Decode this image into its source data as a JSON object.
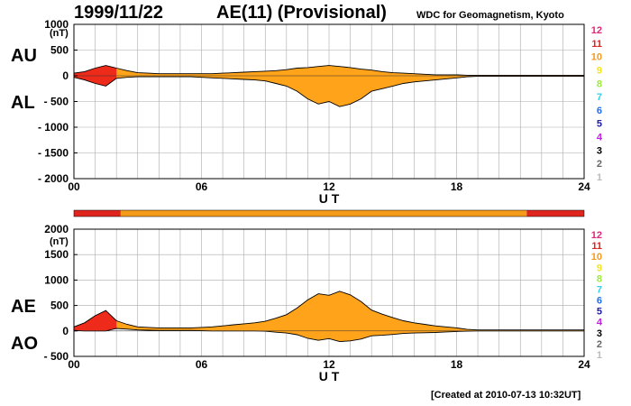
{
  "header": {
    "date": "1999/11/22",
    "title": "AE(11) (Provisional)",
    "source": "WDC for Geomagnetism, Kyoto"
  },
  "footer": {
    "created": "[Created at 2010-07-13 10:32UT]"
  },
  "colors": {
    "fill": "#ffa31a",
    "fill_strong": "#ee2a1a",
    "line": "#000000",
    "grid": "#aaaaaa"
  },
  "station_scale": [
    {
      "label": "12",
      "color": "#e0277a"
    },
    {
      "label": "11",
      "color": "#e0241e"
    },
    {
      "label": "10",
      "color": "#f59b1a"
    },
    {
      "label": "9",
      "color": "#f4e41c"
    },
    {
      "label": "8",
      "color": "#9cea3c"
    },
    {
      "label": "7",
      "color": "#33d0e8"
    },
    {
      "label": "6",
      "color": "#1f6ff0"
    },
    {
      "label": "5",
      "color": "#1d1ca6"
    },
    {
      "label": "4",
      "color": "#c21ee0"
    },
    {
      "label": "3",
      "color": "#000000"
    },
    {
      "label": "2",
      "color": "#666666"
    },
    {
      "label": "1",
      "color": "#bbbbbb"
    }
  ],
  "chart_data": [
    {
      "type": "area",
      "panel": "AU/AL",
      "labels": {
        "upper": "AU",
        "lower": "AL",
        "unit": "(nT)"
      },
      "xlabel": "U T",
      "xlim": [
        0,
        24
      ],
      "xticks": [
        "00",
        "06",
        "12",
        "18",
        "24"
      ],
      "ylim": [
        -2000,
        1000
      ],
      "yticks": [
        "1000",
        "500",
        "0",
        "- 500",
        "- 1000",
        "- 1500",
        "- 2000"
      ],
      "grid": true,
      "x": [
        0,
        0.5,
        1.0,
        1.5,
        2.0,
        2.5,
        3.0,
        3.5,
        4.0,
        4.5,
        5.0,
        5.5,
        6.0,
        6.5,
        7.0,
        7.5,
        8.0,
        8.5,
        9.0,
        9.5,
        10.0,
        10.5,
        11.0,
        11.5,
        12.0,
        12.5,
        13.0,
        13.5,
        14.0,
        14.5,
        15.0,
        15.5,
        16.0,
        16.5,
        17.0,
        17.5,
        18.0,
        18.5,
        19.0,
        19.5,
        20.0,
        20.5,
        21.0,
        21.5,
        22.0,
        22.5,
        23.0,
        23.5,
        24.0
      ],
      "series": [
        {
          "name": "AU",
          "values": [
            50,
            80,
            150,
            200,
            150,
            100,
            60,
            50,
            40,
            40,
            40,
            40,
            40,
            40,
            50,
            60,
            70,
            80,
            90,
            100,
            120,
            150,
            160,
            180,
            200,
            180,
            160,
            130,
            110,
            80,
            60,
            50,
            40,
            30,
            20,
            20,
            20,
            10,
            10,
            10,
            10,
            10,
            10,
            10,
            10,
            10,
            10,
            10,
            10
          ]
        },
        {
          "name": "AL",
          "values": [
            -30,
            -80,
            -150,
            -200,
            -50,
            -30,
            -20,
            -20,
            -20,
            -20,
            -20,
            -20,
            -30,
            -40,
            -50,
            -60,
            -70,
            -80,
            -100,
            -150,
            -200,
            -300,
            -450,
            -550,
            -500,
            -600,
            -550,
            -450,
            -300,
            -250,
            -200,
            -150,
            -120,
            -100,
            -80,
            -60,
            -40,
            -20,
            -10,
            -10,
            -10,
            -10,
            -10,
            -10,
            -10,
            -10,
            -10,
            -10,
            -10
          ]
        }
      ],
      "quality_bar": [
        {
          "from": 0,
          "to": 2.2,
          "level": "11"
        },
        {
          "from": 2.2,
          "to": 21.3,
          "level": "10"
        },
        {
          "from": 21.3,
          "to": 24,
          "level": "11"
        }
      ]
    },
    {
      "type": "area",
      "panel": "AE/AO",
      "labels": {
        "upper": "AE",
        "lower": "AO",
        "unit": "(nT)"
      },
      "xlabel": "U T",
      "xlim": [
        0,
        24
      ],
      "xticks": [
        "00",
        "06",
        "12",
        "18",
        "24"
      ],
      "ylim": [
        -500,
        2000
      ],
      "yticks": [
        "2000",
        "1500",
        "1000",
        "500",
        "0",
        "- 500"
      ],
      "grid": true,
      "x": [
        0,
        0.5,
        1.0,
        1.5,
        2.0,
        2.5,
        3.0,
        3.5,
        4.0,
        4.5,
        5.0,
        5.5,
        6.0,
        6.5,
        7.0,
        7.5,
        8.0,
        8.5,
        9.0,
        9.5,
        10.0,
        10.5,
        11.0,
        11.5,
        12.0,
        12.5,
        13.0,
        13.5,
        14.0,
        14.5,
        15.0,
        15.5,
        16.0,
        16.5,
        17.0,
        17.5,
        18.0,
        18.5,
        19.0,
        19.5,
        20.0,
        20.5,
        21.0,
        21.5,
        22.0,
        22.5,
        23.0,
        23.5,
        24.0
      ],
      "series": [
        {
          "name": "AE",
          "values": [
            80,
            160,
            300,
            400,
            200,
            130,
            80,
            70,
            60,
            60,
            60,
            60,
            70,
            80,
            100,
            120,
            140,
            160,
            190,
            250,
            320,
            450,
            610,
            730,
            700,
            780,
            710,
            580,
            410,
            330,
            260,
            200,
            160,
            130,
            100,
            80,
            60,
            30,
            20,
            20,
            20,
            20,
            20,
            20,
            20,
            20,
            20,
            20,
            20
          ]
        },
        {
          "name": "AO",
          "values": [
            10,
            0,
            0,
            0,
            50,
            35,
            20,
            15,
            10,
            10,
            10,
            10,
            5,
            0,
            0,
            0,
            0,
            0,
            -5,
            -25,
            -40,
            -75,
            -145,
            -185,
            -150,
            -210,
            -195,
            -160,
            -95,
            -85,
            -70,
            -50,
            -40,
            -35,
            -30,
            -20,
            -10,
            -5,
            0,
            0,
            0,
            0,
            0,
            0,
            0,
            0,
            0,
            0,
            0
          ]
        }
      ]
    }
  ]
}
